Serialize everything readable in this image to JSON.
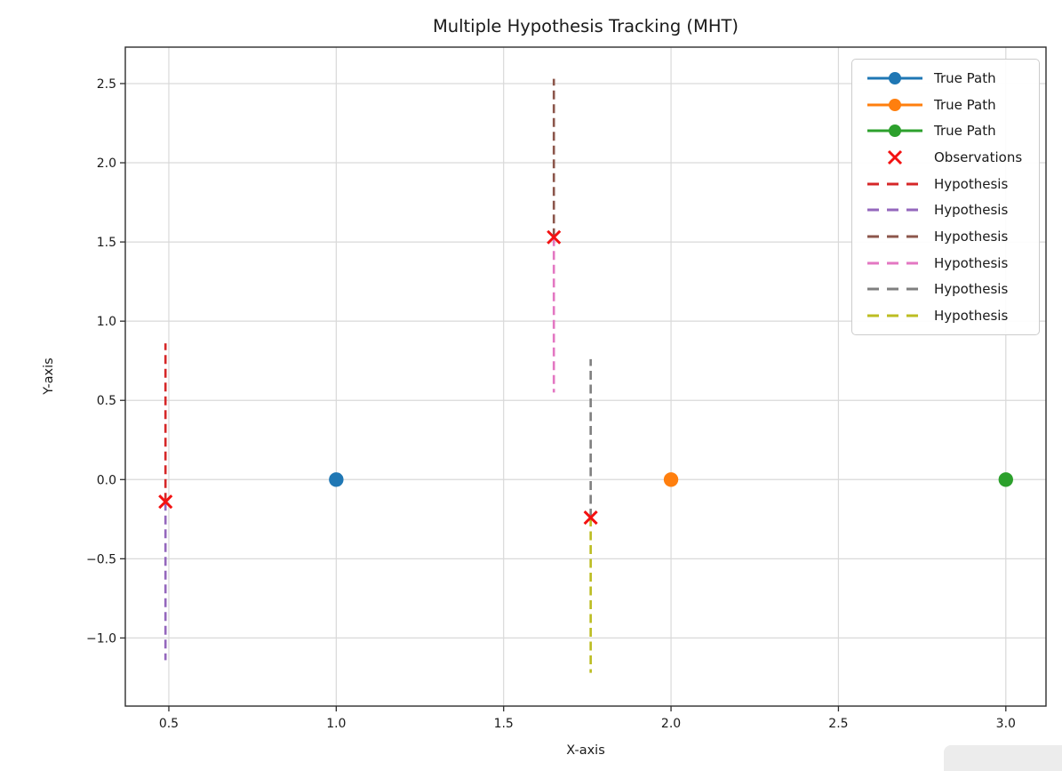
{
  "figure": {
    "background": "#ffffff",
    "grid_color": "#d9d9d9",
    "spine_color": "#2e2e2e",
    "text_color": "#1a1a1a"
  },
  "chart_data": {
    "type": "scatter",
    "title": "Multiple Hypothesis Tracking (MHT)",
    "xlabel": "X-axis",
    "ylabel": "Y-axis",
    "xlim": [
      0.37,
      3.12
    ],
    "ylim": [
      -1.43,
      2.73
    ],
    "x_ticks": [
      0.5,
      1.0,
      1.5,
      2.0,
      2.5,
      3.0
    ],
    "y_ticks": [
      -1.0,
      -0.5,
      0.0,
      0.5,
      1.0,
      1.5,
      2.0,
      2.5
    ],
    "grid": true,
    "legend_position": "upper right",
    "true_path": [
      {
        "label": "True Path",
        "color": "#1f77b4",
        "points": [
          [
            1.0,
            0.0
          ]
        ]
      },
      {
        "label": "True Path",
        "color": "#ff7f0e",
        "points": [
          [
            2.0,
            0.0
          ]
        ]
      },
      {
        "label": "True Path",
        "color": "#2ca02c",
        "points": [
          [
            3.0,
            0.0
          ]
        ]
      }
    ],
    "observations": {
      "label": "Observations",
      "color": "#f31111",
      "points": [
        [
          0.49,
          -0.14
        ],
        [
          1.65,
          1.53
        ],
        [
          1.76,
          -0.24
        ]
      ]
    },
    "hypotheses": [
      {
        "label": "Hypothesis",
        "color": "#d62728",
        "x": 0.49,
        "y_from": -0.14,
        "y_to": 0.86
      },
      {
        "label": "Hypothesis",
        "color": "#9467bd",
        "x": 0.49,
        "y_from": -0.14,
        "y_to": -1.14
      },
      {
        "label": "Hypothesis",
        "color": "#8c564b",
        "x": 1.65,
        "y_from": 1.53,
        "y_to": 2.53
      },
      {
        "label": "Hypothesis",
        "color": "#e377c2",
        "x": 1.65,
        "y_from": 1.53,
        "y_to": 0.55
      },
      {
        "label": "Hypothesis",
        "color": "#7f7f7f",
        "x": 1.76,
        "y_from": -0.24,
        "y_to": 0.76
      },
      {
        "label": "Hypothesis",
        "color": "#bcbd22",
        "x": 1.76,
        "y_from": -0.24,
        "y_to": -1.22
      }
    ],
    "legend": [
      {
        "label": "True Path",
        "sample": "line-dot",
        "color": "#1f77b4"
      },
      {
        "label": "True Path",
        "sample": "line-dot",
        "color": "#ff7f0e"
      },
      {
        "label": "True Path",
        "sample": "line-dot",
        "color": "#2ca02c"
      },
      {
        "label": "Observations",
        "sample": "x-marker",
        "color": "#f31111"
      },
      {
        "label": "Hypothesis",
        "sample": "dashed-line",
        "color": "#d62728"
      },
      {
        "label": "Hypothesis",
        "sample": "dashed-line",
        "color": "#9467bd"
      },
      {
        "label": "Hypothesis",
        "sample": "dashed-line",
        "color": "#8c564b"
      },
      {
        "label": "Hypothesis",
        "sample": "dashed-line",
        "color": "#e377c2"
      },
      {
        "label": "Hypothesis",
        "sample": "dashed-line",
        "color": "#7f7f7f"
      },
      {
        "label": "Hypothesis",
        "sample": "dashed-line",
        "color": "#bcbd22"
      }
    ]
  }
}
